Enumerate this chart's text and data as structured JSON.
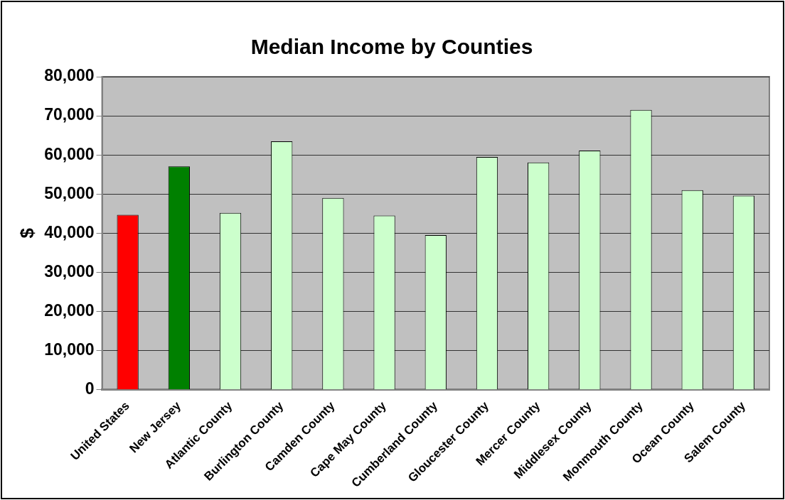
{
  "chart_data": {
    "type": "bar",
    "title": "Median Income by Counties",
    "ylabel": "$",
    "categories": [
      "United States",
      "New Jersey",
      "Atlantic County",
      "Burlington County",
      "Camden County",
      "Cape May County",
      "Cumberland County",
      "Gloucester County",
      "Mercer County",
      "Middlesex County",
      "Monmouth County",
      "Ocean County",
      "Salem County"
    ],
    "values": [
      44700,
      57100,
      45200,
      63500,
      49000,
      44500,
      39500,
      59500,
      58100,
      61100,
      71500,
      51000,
      49600
    ],
    "colors": [
      "#ff0000",
      "#008000",
      "#ccffcc",
      "#ccffcc",
      "#ccffcc",
      "#ccffcc",
      "#ccffcc",
      "#ccffcc",
      "#ccffcc",
      "#ccffcc",
      "#ccffcc",
      "#ccffcc",
      "#ccffcc"
    ],
    "ylim": [
      0,
      80000
    ],
    "yticks": [
      0,
      {
        "value": 10000,
        "label": "10,000"
      },
      {
        "value": 20000,
        "label": "20,000"
      },
      {
        "value": 30000,
        "label": "30,000"
      },
      {
        "value": 40000,
        "label": "40,000"
      },
      {
        "value": 50000,
        "label": "50,000"
      },
      {
        "value": 60000,
        "label": "60,000"
      },
      {
        "value": 70000,
        "label": "70,000"
      },
      {
        "value": 80000,
        "label": "80,000"
      }
    ],
    "grid": "y",
    "legend": false
  }
}
